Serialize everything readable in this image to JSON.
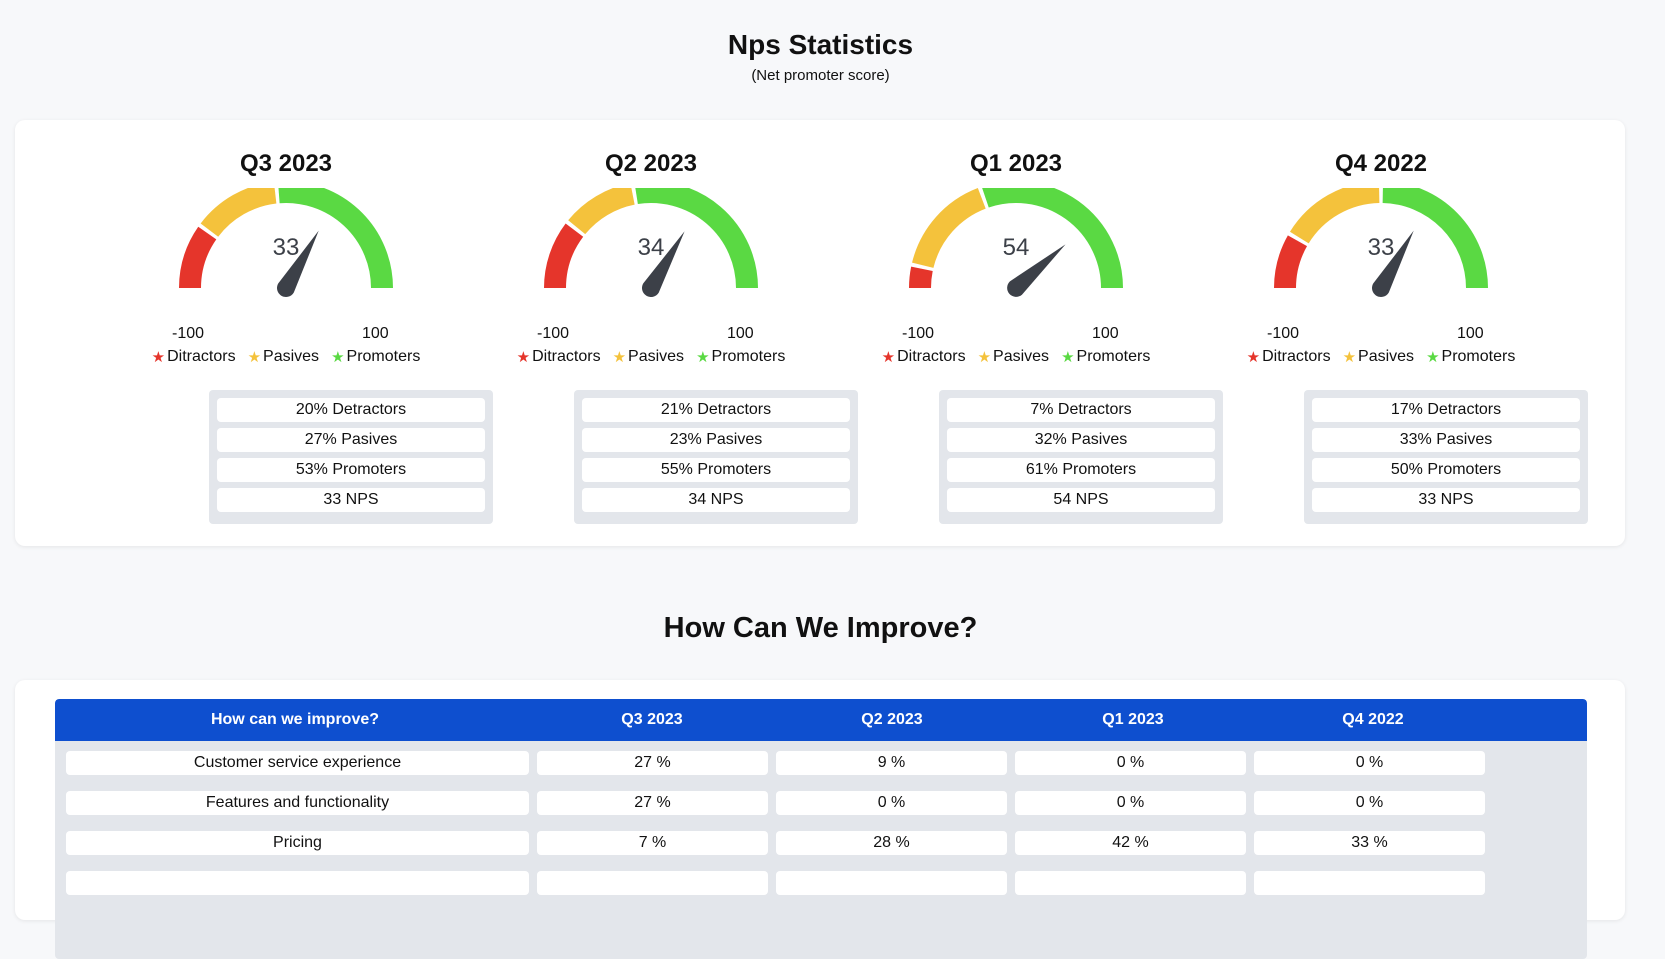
{
  "header": {
    "title": "Nps Statistics",
    "subtitle": "(Net promoter score)"
  },
  "colors": {
    "detractors": "#e5352b",
    "pasives": "#f4c23c",
    "promoters": "#5ad943",
    "needle": "#3c4048",
    "table_header": "#0e4fcf"
  },
  "legend": {
    "detractors_label": "Ditractors",
    "pasives_label": "Pasives",
    "promoters_label": "Promoters",
    "min_label": "-100",
    "max_label": "100",
    "icon": "star-icon"
  },
  "gauges": [
    {
      "quarter": "Q3 2023",
      "nps": 33,
      "detractors_pct": 20,
      "pasives_pct": 27,
      "promoters_pct": 53,
      "stats": [
        "20% Detractors",
        "27% Pasives",
        "53% Promoters",
        "33 NPS"
      ]
    },
    {
      "quarter": "Q2 2023",
      "nps": 34,
      "detractors_pct": 21,
      "pasives_pct": 23,
      "promoters_pct": 55,
      "stats": [
        "21% Detractors",
        "23% Pasives",
        "55% Promoters",
        "34 NPS"
      ]
    },
    {
      "quarter": "Q1 2023",
      "nps": 54,
      "detractors_pct": 7,
      "pasives_pct": 32,
      "promoters_pct": 61,
      "stats": [
        "7% Detractors",
        "32% Pasives",
        "61% Promoters",
        "54 NPS"
      ]
    },
    {
      "quarter": "Q4 2022",
      "nps": 33,
      "detractors_pct": 17,
      "pasives_pct": 33,
      "promoters_pct": 50,
      "stats": [
        "17% Detractors",
        "33% Pasives",
        "50% Promoters",
        "33 NPS"
      ]
    }
  ],
  "improve": {
    "title": "How Can We Improve?",
    "columns": [
      "How can we improve?",
      "Q3 2023",
      "Q2 2023",
      "Q1 2023",
      "Q4 2022"
    ],
    "rows": [
      [
        "Customer service experience",
        "27 %",
        "9 %",
        "0 %",
        "0 %"
      ],
      [
        "Features and functionality",
        "27 %",
        "0 %",
        "0 %",
        "0 %"
      ],
      [
        "Pricing",
        "7 %",
        "28 %",
        "42 %",
        "33 %"
      ]
    ]
  }
}
